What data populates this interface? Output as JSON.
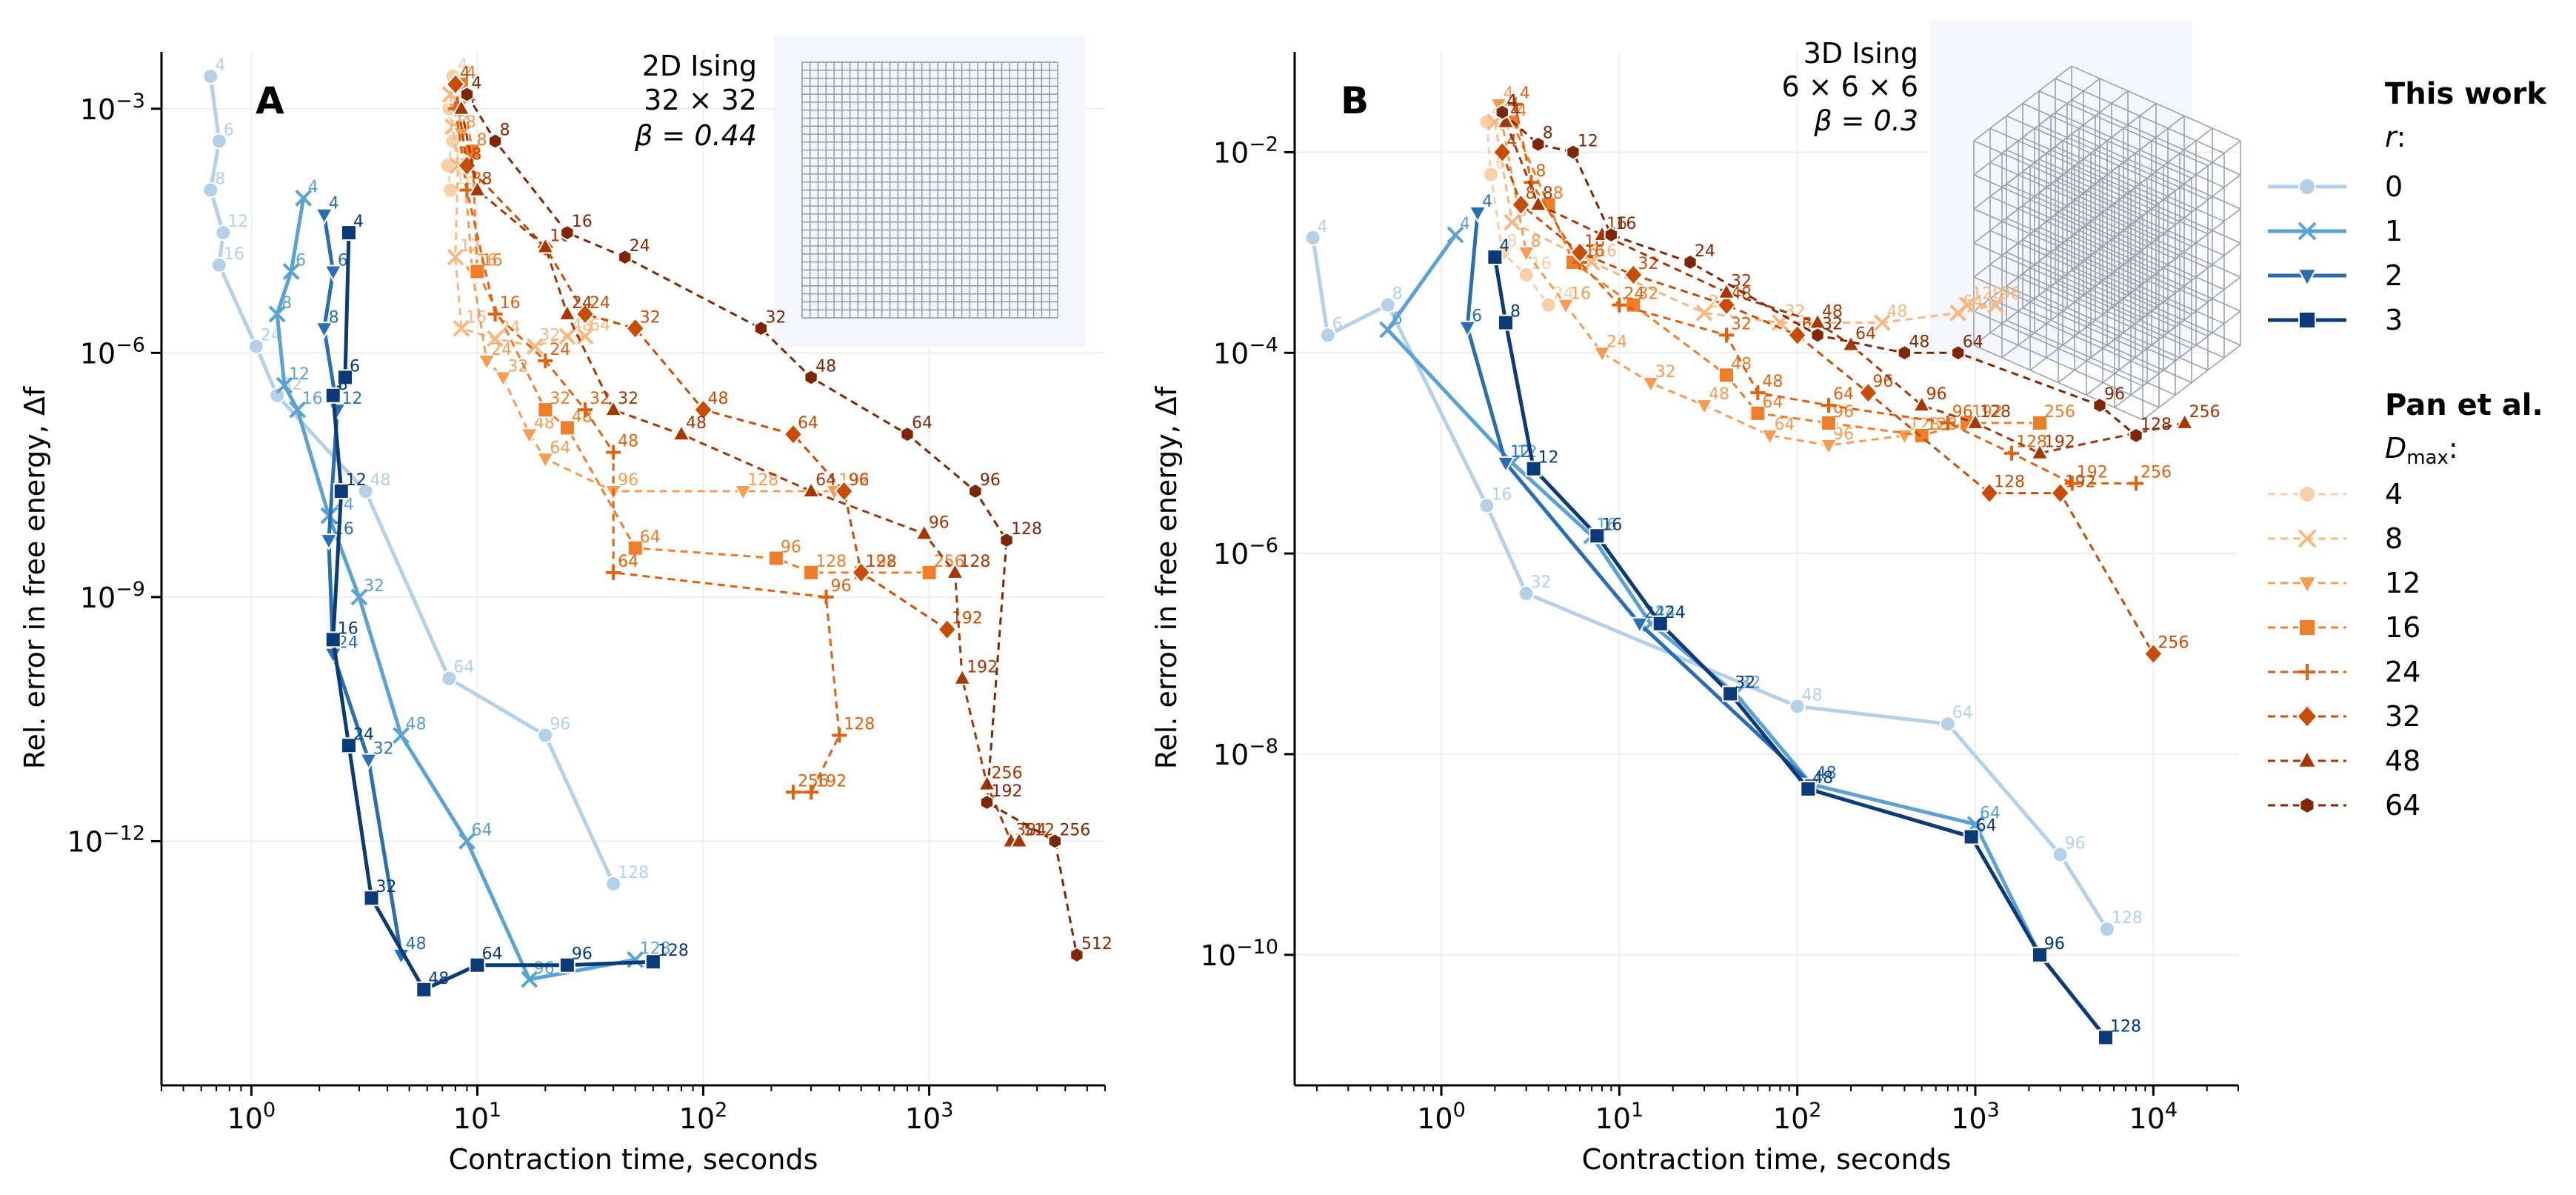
{
  "chart_data": [
    {
      "panel": "A",
      "type": "line",
      "xscale": "log",
      "yscale": "log",
      "xlabel": "Contraction time, seconds",
      "ylabel": "Rel. error in free energy, Δf",
      "xlim": [
        0.4,
        6000
      ],
      "ylim": [
        1e-15,
        0.005
      ],
      "xticks": [
        {
          "v": 1,
          "exp": "0"
        },
        {
          "v": 10,
          "exp": "1"
        },
        {
          "v": 100,
          "exp": "2"
        },
        {
          "v": 1000,
          "exp": "3"
        }
      ],
      "yticks": [
        {
          "v": 0.001,
          "exp": "-3"
        },
        {
          "v": 1e-06,
          "exp": "-6"
        },
        {
          "v": 1e-09,
          "exp": "-9"
        },
        {
          "v": 1e-12,
          "exp": "-12"
        }
      ],
      "inset_text": [
        "2D Ising",
        "32 × 32",
        "β = 0.44"
      ],
      "inset_kind": "grid2d",
      "this_work": [
        {
          "r": 0,
          "labels": [
            "4",
            "6",
            "8",
            "12",
            "16",
            "24",
            "32",
            "48",
            "64",
            "96",
            "128"
          ],
          "x": [
            0.66,
            0.72,
            0.66,
            0.75,
            0.72,
            1.05,
            1.3,
            3.2,
            7.5,
            20,
            40
          ],
          "y": [
            0.0025,
            0.0004,
            0.0001,
            3e-05,
            1.2e-05,
            1.2e-06,
            3e-07,
            2e-08,
            1e-10,
            2e-11,
            3e-13
          ]
        },
        {
          "r": 1,
          "labels": [
            "4",
            "6",
            "8",
            "12",
            "16",
            "24",
            "32",
            "48",
            "64",
            "96",
            "128"
          ],
          "x": [
            1.7,
            1.5,
            1.3,
            1.4,
            1.6,
            2.2,
            3,
            4.6,
            9,
            17,
            50
          ],
          "y": [
            8e-05,
            1e-05,
            3e-06,
            4e-07,
            2e-07,
            1e-08,
            1e-09,
            2e-11,
            1e-12,
            2e-14,
            3.5e-14
          ]
        },
        {
          "r": 2,
          "labels": [
            "4",
            "6",
            "8",
            "12",
            "16",
            "24",
            "32",
            "48"
          ],
          "x": [
            2.1,
            2.3,
            2.1,
            2.4,
            2.2,
            2.3,
            3.3,
            4.6
          ],
          "y": [
            5e-05,
            1e-05,
            2e-06,
            2e-07,
            5e-09,
            2e-10,
            1e-11,
            4e-14
          ]
        },
        {
          "r": 3,
          "labels": [
            "4",
            "6",
            "8",
            "12",
            "16",
            "24",
            "32",
            "48",
            "64",
            "96",
            "128"
          ],
          "x": [
            2.7,
            2.6,
            2.3,
            2.5,
            2.3,
            2.7,
            3.4,
            5.8,
            10,
            25,
            60
          ],
          "y": [
            3e-05,
            5e-07,
            3e-07,
            2e-08,
            3e-10,
            1.5e-11,
            2e-13,
            1.5e-14,
            3e-14,
            3e-14,
            3.3e-14
          ]
        }
      ],
      "pan_et_al": [
        {
          "D": 4,
          "labels": [
            "4",
            "6",
            "8",
            "12",
            "16"
          ],
          "x": [
            7.8,
            7.5,
            7.8,
            7.4,
            7.6
          ],
          "y": [
            0.0025,
            0.001,
            0.0004,
            0.0002,
            0.0001
          ]
        },
        {
          "D": 8,
          "labels": [
            "4",
            "6",
            "8",
            "12",
            "16",
            "24",
            "32",
            "48",
            "64"
          ],
          "x": [
            7.6,
            7.8,
            8.2,
            8,
            8.5,
            12,
            18,
            25,
            30
          ],
          "y": [
            0.0015,
            0.0006,
            0.0002,
            1.5e-05,
            2e-06,
            1.5e-06,
            1.2e-06,
            1.6e-06,
            1.6e-06
          ]
        },
        {
          "D": 12,
          "labels": [
            "4",
            "8",
            "16",
            "24",
            "32",
            "48",
            "64",
            "96",
            "128",
            "192"
          ],
          "x": [
            8,
            8.5,
            9.5,
            11,
            13,
            17,
            20,
            40,
            150,
            380
          ],
          "y": [
            0.001,
            0.0005,
            1e-05,
            8e-07,
            5e-07,
            1e-07,
            5e-08,
            2e-08,
            2e-08,
            2e-08
          ]
        },
        {
          "D": 16,
          "labels": [
            "4",
            "8",
            "16",
            "32",
            "48",
            "64",
            "96",
            "128",
            "192",
            "256"
          ],
          "x": [
            8.5,
            9.5,
            10,
            20,
            25,
            50,
            210,
            300,
            500,
            1000
          ],
          "y": [
            0.002,
            0.0003,
            1e-05,
            2e-07,
            1.2e-07,
            4e-09,
            3e-09,
            2e-09,
            2e-09,
            2e-09
          ]
        },
        {
          "D": 24,
          "labels": [
            "4",
            "8",
            "16",
            "24",
            "32",
            "48",
            "64",
            "96",
            "128",
            "192",
            "256"
          ],
          "x": [
            8,
            9,
            12,
            20,
            30,
            40,
            40,
            350,
            400,
            300,
            250
          ],
          "y": [
            0.001,
            0.0001,
            3e-06,
            8e-07,
            2e-07,
            6e-08,
            2e-09,
            1e-09,
            2e-11,
            4e-12,
            4e-12
          ]
        },
        {
          "D": 32,
          "labels": [
            "4",
            "8",
            "16",
            "24",
            "32",
            "48",
            "64",
            "96",
            "128",
            "192"
          ],
          "x": [
            8,
            9,
            20,
            30,
            50,
            100,
            250,
            420,
            500,
            1200
          ],
          "y": [
            0.002,
            0.0002,
            2e-05,
            3e-06,
            2e-06,
            2e-07,
            1e-07,
            2e-08,
            2e-09,
            4e-10
          ]
        },
        {
          "D": 48,
          "labels": [
            "4",
            "8",
            "16",
            "24",
            "32",
            "48",
            "64",
            "96",
            "128",
            "192",
            "256",
            "384",
            "512"
          ],
          "x": [
            8.5,
            10,
            20,
            25,
            40,
            80,
            300,
            950,
            1300,
            1400,
            1800,
            2300,
            2500
          ],
          "y": [
            0.001,
            0.0001,
            2e-05,
            3e-06,
            2e-07,
            1e-07,
            2e-08,
            6e-09,
            2e-09,
            1e-10,
            5e-12,
            1e-12,
            1e-12
          ]
        },
        {
          "D": 64,
          "labels": [
            "4",
            "8",
            "16",
            "24",
            "32",
            "48",
            "64",
            "96",
            "128",
            "192",
            "256",
            "512"
          ],
          "x": [
            9,
            12,
            25,
            45,
            180,
            300,
            800,
            1600,
            2200,
            1800,
            3600,
            4500
          ],
          "y": [
            0.0015,
            0.0004,
            3e-05,
            1.5e-05,
            2e-06,
            5e-07,
            1e-07,
            2e-08,
            5e-09,
            3e-12,
            1e-12,
            4e-14
          ]
        }
      ]
    },
    {
      "panel": "B",
      "type": "line",
      "xscale": "log",
      "yscale": "log",
      "xlabel": "Contraction time, seconds",
      "ylabel": "Rel. error in free energy, Δf",
      "xlim": [
        0.15,
        30000
      ],
      "ylim": [
        5e-12,
        0.1
      ],
      "xticks": [
        {
          "v": 1,
          "exp": "0"
        },
        {
          "v": 10,
          "exp": "1"
        },
        {
          "v": 100,
          "exp": "2"
        },
        {
          "v": 1000,
          "exp": "3"
        },
        {
          "v": 10000,
          "exp": "4"
        }
      ],
      "yticks": [
        {
          "v": 0.01,
          "exp": "-2"
        },
        {
          "v": 0.0001,
          "exp": "-4"
        },
        {
          "v": 1e-06,
          "exp": "-6"
        },
        {
          "v": 1e-08,
          "exp": "-8"
        },
        {
          "v": 1e-10,
          "exp": "-10"
        }
      ],
      "inset_text": [
        "3D Ising",
        "6 × 6 × 6",
        "β = 0.3"
      ],
      "inset_kind": "cube3d",
      "this_work": [
        {
          "r": 0,
          "labels": [
            "4",
            "6",
            "8",
            "16",
            "32",
            "48",
            "64",
            "96",
            "128"
          ],
          "x": [
            0.19,
            0.23,
            0.5,
            1.8,
            3,
            100,
            700,
            3000,
            5500
          ],
          "y": [
            0.0014,
            0.00015,
            0.0003,
            3e-06,
            4e-07,
            3e-08,
            2e-08,
            1e-09,
            1.8e-10
          ]
        },
        {
          "r": 1,
          "labels": [
            "4",
            "6",
            "12",
            "16",
            "24",
            "32",
            "48",
            "64",
            "96",
            "128"
          ],
          "x": [
            1.2,
            0.5,
            2.5,
            7,
            15,
            45,
            120,
            1000,
            2300,
            5400
          ],
          "y": [
            0.0015,
            0.00017,
            8e-06,
            1.5e-06,
            2e-07,
            4e-08,
            5e-09,
            2e-09,
            1e-10,
            1.5e-11
          ]
        },
        {
          "r": 2,
          "labels": [
            "4",
            "6",
            "12",
            "24",
            "48"
          ],
          "x": [
            1.6,
            1.4,
            2.3,
            13,
            120
          ],
          "y": [
            0.0025,
            0.00018,
            8e-06,
            2e-07,
            5e-09
          ]
        },
        {
          "r": 3,
          "labels": [
            "4",
            "8",
            "12",
            "16",
            "24",
            "32",
            "48",
            "64",
            "96",
            "128"
          ],
          "x": [
            2,
            2.3,
            3.3,
            7.5,
            17,
            42,
            115,
            950,
            2300,
            5400
          ],
          "y": [
            0.0009,
            0.0002,
            7e-06,
            1.5e-06,
            2e-07,
            4e-08,
            4.5e-09,
            1.5e-09,
            1e-10,
            1.5e-11
          ]
        }
      ],
      "pan_et_al": [
        {
          "D": 4,
          "labels": [
            "4",
            "6",
            "8",
            "16",
            "24"
          ],
          "x": [
            1.8,
            1.9,
            2.2,
            3,
            4
          ],
          "y": [
            0.02,
            0.006,
            0.001,
            0.0006,
            0.0003
          ]
        },
        {
          "D": 8,
          "labels": [
            "4",
            "8",
            "16",
            "24",
            "32",
            "48",
            "64",
            "96",
            "128"
          ],
          "x": [
            2,
            2.5,
            7,
            30,
            80,
            300,
            800,
            1300,
            900
          ],
          "y": [
            0.02,
            0.002,
            0.0008,
            0.00025,
            0.0002,
            0.0002,
            0.00025,
            0.0003,
            0.0003
          ]
        },
        {
          "D": 12,
          "labels": [
            "4",
            "8",
            "16",
            "24",
            "32",
            "48",
            "64",
            "96",
            "128"
          ],
          "x": [
            2.1,
            3,
            5,
            8,
            15,
            30,
            70,
            150,
            400
          ],
          "y": [
            0.03,
            0.001,
            0.0003,
            0.0001,
            5e-05,
            3e-05,
            1.5e-05,
            1.2e-05,
            1.5e-05
          ]
        },
        {
          "D": 16,
          "labels": [
            "4",
            "8",
            "16",
            "32",
            "48",
            "64",
            "96",
            "128",
            "192",
            "256"
          ],
          "x": [
            2.5,
            4,
            5.5,
            12,
            40,
            60,
            150,
            500,
            900,
            2300
          ],
          "y": [
            0.02,
            0.003,
            0.0008,
            0.0003,
            6e-05,
            2.5e-05,
            2e-05,
            1.5e-05,
            2e-05,
            2e-05
          ]
        },
        {
          "D": 24,
          "labels": [
            "4",
            "8",
            "16",
            "24",
            "32",
            "48",
            "64",
            "96",
            "128",
            "192",
            "256"
          ],
          "x": [
            2.6,
            3.2,
            6,
            10,
            40,
            60,
            150,
            700,
            1600,
            3500,
            8000
          ],
          "y": [
            0.03,
            0.005,
            0.0008,
            0.0003,
            0.00015,
            4e-05,
            3e-05,
            2e-05,
            1e-05,
            5e-06,
            5e-06
          ]
        },
        {
          "D": 32,
          "labels": [
            "4",
            "8",
            "16",
            "32",
            "48",
            "64",
            "96",
            "128",
            "192",
            "256"
          ],
          "x": [
            2.2,
            2.8,
            6,
            12,
            40,
            100,
            250,
            1200,
            3000,
            10000
          ],
          "y": [
            0.01,
            0.003,
            0.001,
            0.0006,
            0.0003,
            0.00015,
            4e-05,
            4e-06,
            4e-06,
            1e-07
          ]
        },
        {
          "D": 48,
          "labels": [
            "4",
            "8",
            "16",
            "32",
            "48",
            "64",
            "96",
            "128",
            "192",
            "256"
          ],
          "x": [
            2.3,
            3.5,
            8,
            40,
            130,
            200,
            500,
            1000,
            2300,
            15000
          ],
          "y": [
            0.02,
            0.003,
            0.0015,
            0.0004,
            0.0002,
            0.00012,
            3e-05,
            2e-05,
            1e-05,
            2e-05
          ]
        },
        {
          "D": 64,
          "labels": [
            "4",
            "8",
            "12",
            "16",
            "24",
            "32",
            "48",
            "64",
            "96",
            "128"
          ],
          "x": [
            2.2,
            3.5,
            5.5,
            9,
            25,
            130,
            400,
            800,
            5000,
            8000
          ],
          "y": [
            0.025,
            0.012,
            0.01,
            0.0015,
            0.0008,
            0.00015,
            0.0001,
            0.0001,
            3e-05,
            1.5e-05
          ]
        }
      ]
    }
  ],
  "legend": {
    "this_work_title": "This work",
    "this_work_param": "r",
    "this_work_entries": [
      "0",
      "1",
      "2",
      "3"
    ],
    "pan_title": "Pan et al.",
    "pan_param": "D",
    "pan_param_sub": "max",
    "pan_entries": [
      "4",
      "8",
      "12",
      "16",
      "24",
      "32",
      "48",
      "64"
    ]
  },
  "colors": {
    "blues": [
      "#b5d1e8",
      "#5aa2d2",
      "#2a6eb2",
      "#0b3a78"
    ],
    "oranges": [
      "#f8d0a9",
      "#f8b882",
      "#f69d55",
      "#ef7d2a",
      "#e0620f",
      "#c84c05",
      "#a63703",
      "#7f2704"
    ],
    "markers_blue": [
      "circle",
      "x",
      "tri-down",
      "square"
    ],
    "markers_orange": [
      "circle",
      "x",
      "tri-down",
      "square",
      "plus",
      "diamond",
      "tri-up",
      "hexagon"
    ]
  }
}
